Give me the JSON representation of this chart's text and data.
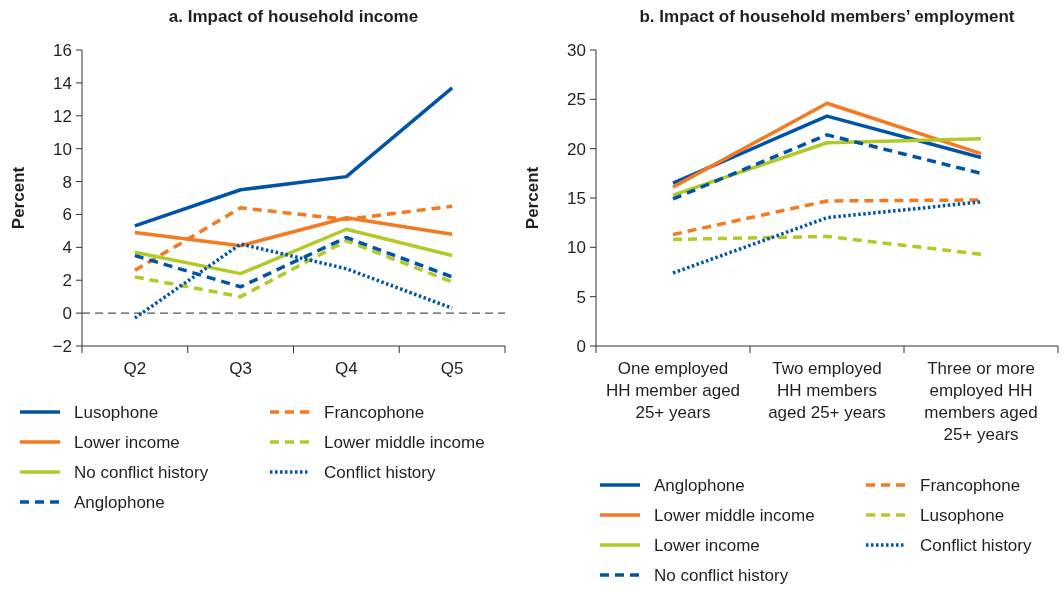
{
  "chart_data": [
    {
      "type": "line",
      "title": "a. Impact of household income",
      "ylabel": "Percent",
      "categories": [
        "Q2",
        "Q3",
        "Q4",
        "Q5"
      ],
      "ylim": [
        -2,
        16
      ],
      "yticks": [
        {
          "value": -2,
          "label": "−2"
        },
        0,
        2,
        4,
        6,
        8,
        10,
        12,
        14,
        16
      ],
      "legend": "bottom",
      "ref_lines": [
        {
          "axis": "y",
          "value": 0,
          "color": "#555555",
          "line_style": "dashed"
        }
      ],
      "series": [
        {
          "name": "Lusophone",
          "color": "#0054a6",
          "line_style": "solid",
          "values": [
            5.3,
            7.5,
            8.3,
            13.7
          ]
        },
        {
          "name": "Francophone",
          "color": "#f47920",
          "line_style": "dashed",
          "values": [
            2.6,
            6.4,
            5.7,
            6.5
          ]
        },
        {
          "name": "Lower income",
          "color": "#f47920",
          "line_style": "solid",
          "values": [
            4.9,
            4.1,
            5.8,
            4.8
          ]
        },
        {
          "name": "Lower middle income",
          "color": "#b2c928",
          "line_style": "dashed",
          "values": [
            2.2,
            1.0,
            4.4,
            1.9
          ]
        },
        {
          "name": "No conflict history",
          "color": "#b2c928",
          "line_style": "solid",
          "values": [
            3.7,
            2.4,
            5.1,
            3.5
          ]
        },
        {
          "name": "Conflict history",
          "color": "#0054a6",
          "line_style": "dotted",
          "values": [
            -0.3,
            4.2,
            2.7,
            0.3
          ]
        },
        {
          "name": "Anglophone",
          "color": "#0054a6",
          "line_style": "dashed",
          "values": [
            3.5,
            1.6,
            4.6,
            2.2
          ]
        }
      ]
    },
    {
      "type": "line",
      "title": "b. Impact of household members’ employment",
      "ylabel": "Percent",
      "categories": [
        "One employed HH member aged 25+ years",
        "Two employed HH members aged 25+ years",
        "Three or more employed HH members aged 25+ years"
      ],
      "ylim": [
        0,
        30
      ],
      "yticks": [
        0,
        5,
        10,
        15,
        20,
        25,
        30
      ],
      "legend": "bottom",
      "series": [
        {
          "name": "Anglophone",
          "color": "#0054a6",
          "line_style": "solid",
          "values": [
            16.5,
            23.3,
            19.1
          ]
        },
        {
          "name": "Francophone",
          "color": "#f47920",
          "line_style": "dashed",
          "values": [
            11.3,
            14.7,
            14.8
          ]
        },
        {
          "name": "Lower middle income",
          "color": "#f47920",
          "line_style": "solid",
          "values": [
            16.1,
            24.6,
            19.5
          ]
        },
        {
          "name": "Lusophone",
          "color": "#b2c928",
          "line_style": "dashed",
          "values": [
            10.8,
            11.1,
            9.3
          ]
        },
        {
          "name": "Lower income",
          "color": "#b2c928",
          "line_style": "solid",
          "values": [
            15.3,
            20.6,
            21.0
          ]
        },
        {
          "name": "Conflict history",
          "color": "#0054a6",
          "line_style": "dotted",
          "values": [
            7.4,
            13.0,
            14.6
          ]
        },
        {
          "name": "No conflict history",
          "color": "#0054a6",
          "line_style": "dashed",
          "values": [
            14.9,
            21.4,
            17.5
          ]
        }
      ]
    }
  ]
}
